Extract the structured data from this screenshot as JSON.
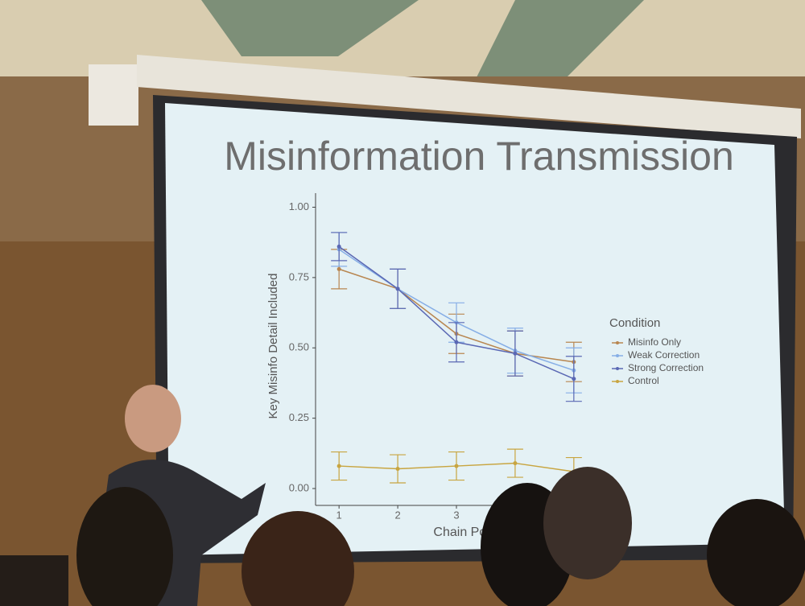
{
  "chart_data": {
    "type": "line",
    "title": "Misinformation Transmission",
    "x_label": "Chain Position",
    "y_label": "Key Misinfo Detail Included",
    "legend_title": "Condition",
    "x": [
      1,
      2,
      3,
      4,
      5
    ],
    "xlim": [
      0.6,
      5.4
    ],
    "xticks": [
      1,
      2,
      3
    ],
    "ylim": [
      -0.06,
      1.05
    ],
    "yticks": [
      {
        "value": 0,
        "label": "0.00"
      },
      {
        "value": 0.25,
        "label": "0.25"
      },
      {
        "value": 0.5,
        "label": "0.50"
      },
      {
        "value": 0.75,
        "label": "0.75"
      },
      {
        "value": 1,
        "label": "1.00"
      }
    ],
    "series": [
      {
        "name": "Misinfo Only",
        "color": "#b88650",
        "values": [
          0.78,
          0.71,
          0.55,
          0.48,
          0.45
        ],
        "errors": [
          0.07,
          0.07,
          0.07,
          0.08,
          0.07
        ]
      },
      {
        "name": "Weak Correction",
        "color": "#86aee6",
        "values": [
          0.85,
          0.71,
          0.59,
          0.49,
          0.42
        ],
        "errors": [
          0.06,
          0.07,
          0.07,
          0.08,
          0.08
        ]
      },
      {
        "name": "Strong Correction",
        "color": "#5a68b4",
        "values": [
          0.86,
          0.71,
          0.52,
          0.48,
          0.39
        ],
        "errors": [
          0.05,
          0.07,
          0.07,
          0.08,
          0.08
        ]
      },
      {
        "name": "Control",
        "color": "#c8a540",
        "values": [
          0.08,
          0.07,
          0.08,
          0.09,
          0.06
        ],
        "errors": [
          0.05,
          0.05,
          0.05,
          0.05,
          0.05
        ]
      }
    ]
  }
}
